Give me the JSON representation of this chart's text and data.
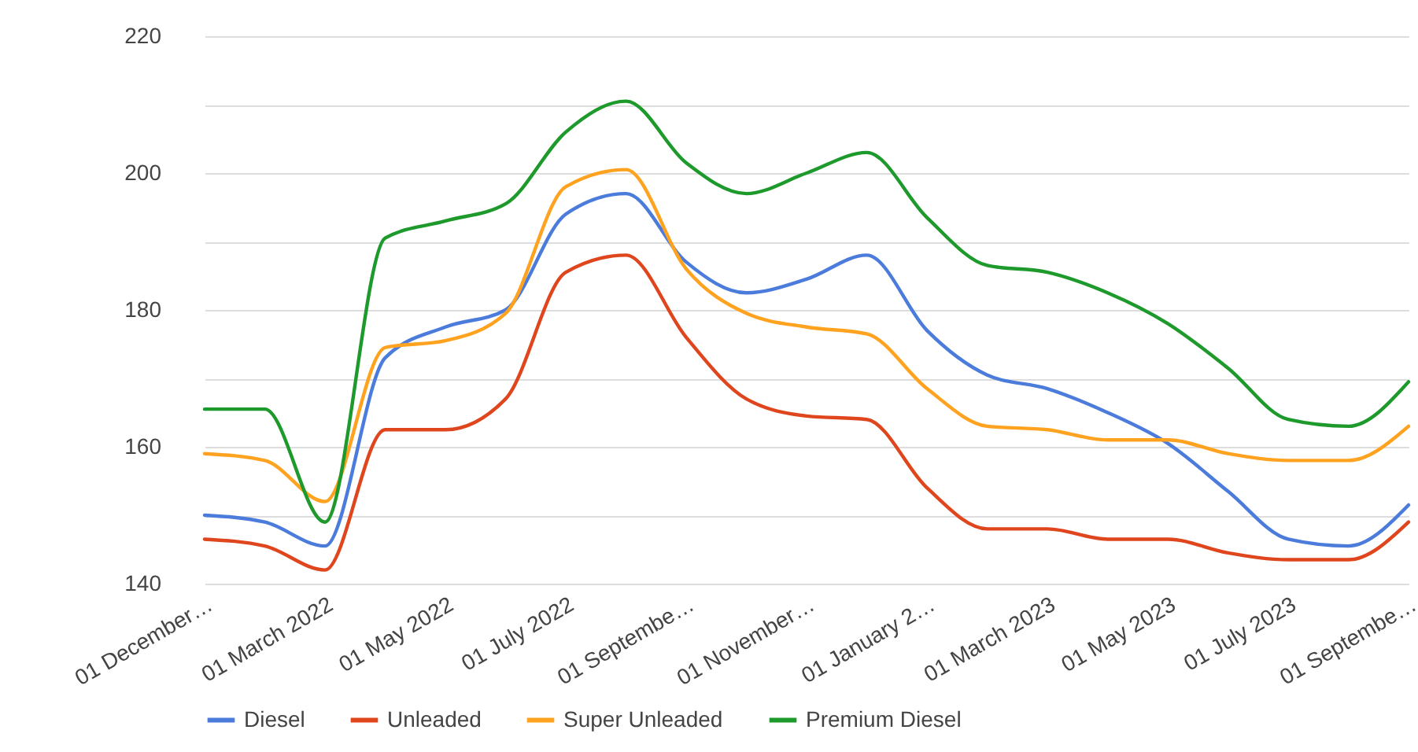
{
  "chart_data": {
    "type": "line",
    "categories": [
      "01 December…",
      null,
      "01 March 2022",
      null,
      "01 May 2022",
      null,
      "01 July 2022",
      null,
      "01 Septembe…",
      null,
      "01 November…",
      null,
      "01 January 2…",
      null,
      "01 March 2023",
      null,
      "01 May 2023",
      null,
      "01 July 2023",
      null,
      "01 Septembe…"
    ],
    "series": [
      {
        "name": "Diesel",
        "color": "#4b7bdb",
        "values": [
          150,
          149,
          145.5,
          173,
          177.5,
          180,
          194,
          197,
          187,
          182.5,
          184.5,
          188,
          177,
          170.5,
          168.5,
          165,
          160.5,
          153.5,
          146.5,
          145.5,
          151.5
        ]
      },
      {
        "name": "Unleaded",
        "color": "#e0461e",
        "values": [
          146.5,
          145.5,
          142,
          162.5,
          162.5,
          167,
          185.5,
          188,
          176,
          167,
          164.5,
          164,
          154,
          148,
          148,
          146.5,
          146.5,
          144.5,
          143.5,
          143.5,
          149
        ]
      },
      {
        "name": "Super Unleaded",
        "color": "#ffa21f",
        "values": [
          159,
          158,
          152,
          174.5,
          175.5,
          179.5,
          198,
          200.5,
          186,
          179.5,
          177.5,
          176.5,
          168.5,
          163,
          162.5,
          161,
          161,
          159,
          158,
          158,
          163
        ]
      },
      {
        "name": "Premium Diesel",
        "color": "#1d9a2b",
        "values": [
          165.5,
          165.5,
          149,
          190.5,
          193,
          195.5,
          206,
          210.5,
          201.5,
          197,
          200,
          203,
          193.5,
          186.5,
          185.5,
          182.5,
          178,
          171.5,
          164,
          163,
          169.5
        ]
      }
    ],
    "ylim": [
      140,
      220
    ],
    "yticks": [
      140,
      {
        "value": 150,
        "label": null
      },
      160,
      {
        "value": 170,
        "label": null
      },
      180,
      {
        "value": 190,
        "label": null
      },
      200,
      {
        "value": 210,
        "label": null
      },
      220
    ],
    "grid": "y",
    "legend": "bottom",
    "marker": "none",
    "line_style": "solid"
  }
}
